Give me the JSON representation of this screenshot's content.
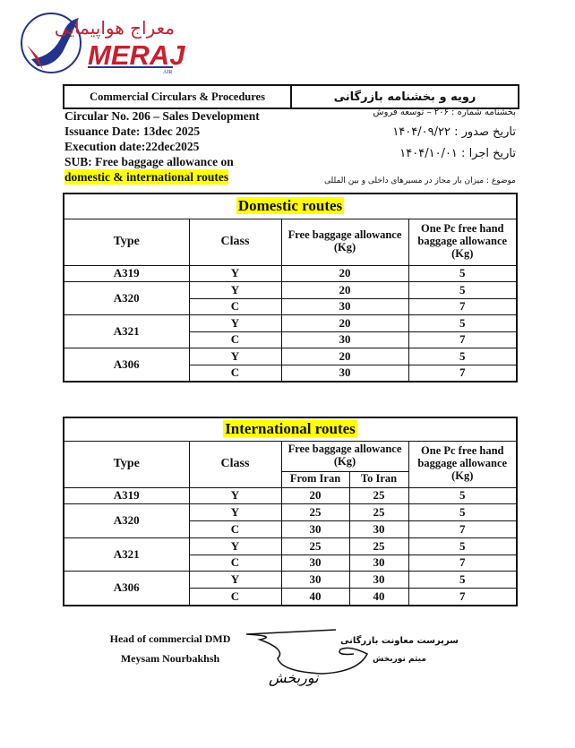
{
  "logo": {
    "text_en": "MERAJ",
    "sub": "AIR",
    "text_fa": "معراج هواپیمایی",
    "colors": {
      "red": "#c8202f",
      "blue": "#24348c"
    }
  },
  "header": {
    "left": "Commercial Circulars & Procedures",
    "right": "رویه و بخشنامه بازرگانی"
  },
  "info_en": [
    "Circular No. 206 – Sales Development",
    "Issuance Date: 13dec 2025",
    "Execution date:22dec2025",
    "SUB: Free baggage allowance on",
    "domestic & international routes"
  ],
  "info_fa": {
    "circular": "بخشنامه شماره : ۲۰۶ – توسعه فروش",
    "issue": "تاریخ صدور : ۱۴۰۴/۰۹/۲۲",
    "exec": "تاریخ اجرا : ۱۴۰۴/۱۰/۰۱",
    "subject": "موضوع : میزان بار مجاز در مسیرهای داخلی و بین المللی"
  },
  "domestic": {
    "title": "Domestic routes",
    "headers": [
      "Type",
      "Class",
      "Free baggage allowance (Kg)",
      "One Pc free hand baggage allowance (Kg)"
    ],
    "rows": [
      [
        "A319",
        "Y",
        "20",
        "5"
      ],
      [
        "A320",
        "Y",
        "20",
        "5"
      ],
      [
        "",
        "C",
        "30",
        "7"
      ],
      [
        "A321",
        "Y",
        "20",
        "5"
      ],
      [
        "",
        "C",
        "30",
        "7"
      ],
      [
        "A306",
        "Y",
        "20",
        "5"
      ],
      [
        "",
        "C",
        "30",
        "7"
      ]
    ]
  },
  "international": {
    "title": "International routes",
    "headers": [
      "Type",
      "Class",
      "Free baggage allowance (Kg)",
      "One Pc free hand baggage allowance (Kg)"
    ],
    "subheaders": [
      "From Iran",
      "To Iran"
    ],
    "rows": [
      [
        "A319",
        "Y",
        "20",
        "25",
        "5"
      ],
      [
        "A320",
        "Y",
        "25",
        "25",
        "5"
      ],
      [
        "",
        "C",
        "30",
        "30",
        "7"
      ],
      [
        "A321",
        "Y",
        "25",
        "25",
        "5"
      ],
      [
        "",
        "C",
        "30",
        "30",
        "7"
      ],
      [
        "A306",
        "Y",
        "30",
        "30",
        "5"
      ],
      [
        "",
        "C",
        "40",
        "40",
        "7"
      ]
    ]
  },
  "signature": {
    "title_en": "Head of commercial DMD",
    "name_en": "Meysam Nourbakhsh",
    "title_fa": "سرپرست معاونت بازرگانی",
    "name_fa": "میثم نوربخش",
    "sign": "نوربخش"
  }
}
